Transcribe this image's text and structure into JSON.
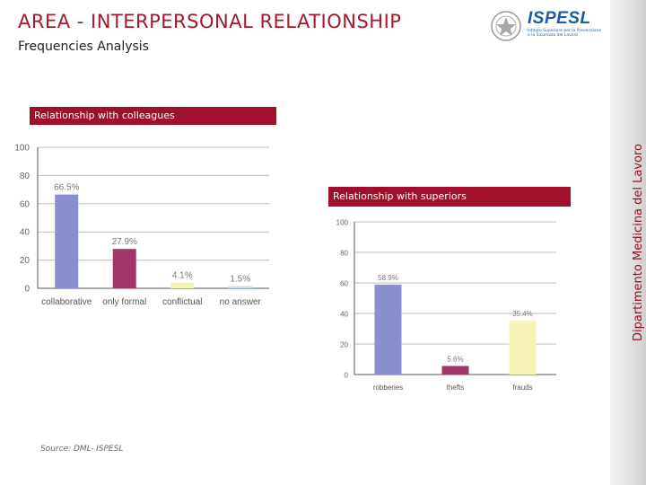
{
  "header": {
    "title": "AREA - INTERPERSONAL RELATIONSHIP",
    "subtitle": "Frequencies Analysis"
  },
  "logo": {
    "name": "ISPESL",
    "tagline": "Istituto Superiore per la Prevenzione e la Sicurezza del Lavoro"
  },
  "sidebar": {
    "label": "Dipartimento Medicina del Lavoro"
  },
  "source": "Source: DML- ISPESL",
  "colors": {
    "accent": "#a0102a",
    "title": "#a3192b"
  },
  "chart_data": [
    {
      "type": "bar",
      "title": "Relationship with colleagues",
      "categories": [
        "collaborative",
        "only formal",
        "conflictual",
        "no answer"
      ],
      "values": [
        66.5,
        27.9,
        4.1,
        1.5
      ],
      "value_labels": [
        "66.5%",
        "27.9%",
        "4.1%",
        "1.5%"
      ],
      "bar_colors": [
        "#8a8fcf",
        "#a2356a",
        "#f7f4b8",
        "#bfe0ef"
      ],
      "y_ticks": [
        0,
        20,
        40,
        60,
        80,
        100
      ],
      "y_tick_labels": [
        "0",
        "20",
        "40",
        "60",
        "80",
        "100"
      ],
      "ylim": [
        0,
        100
      ],
      "grid": true,
      "xlabel": "",
      "ylabel": ""
    },
    {
      "type": "bar",
      "title": "Relationship with superiors",
      "categories": [
        "robberies",
        "thefts",
        "frauds"
      ],
      "values": [
        58.9,
        5.6,
        35.4
      ],
      "value_labels": [
        "58.9%",
        "5.6%",
        "35.4%"
      ],
      "bar_colors": [
        "#8a8fcf",
        "#a2356a",
        "#f7f4b8"
      ],
      "y_ticks": [
        0,
        20,
        40,
        60,
        80,
        100
      ],
      "y_tick_labels": [
        "0",
        "20",
        "40",
        "60",
        "80",
        "100"
      ],
      "ylim": [
        0,
        100
      ],
      "grid": true,
      "xlabel": "",
      "ylabel": ""
    }
  ]
}
